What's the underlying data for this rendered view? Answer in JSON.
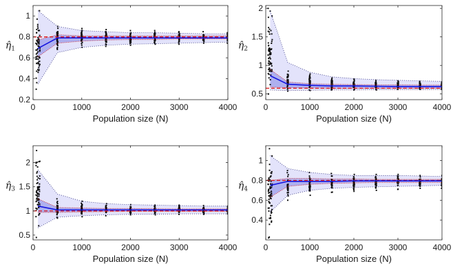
{
  "chart_data": [
    {
      "type": "line",
      "ylabel": "η̂1",
      "xlabel": "Population size (N)",
      "xlim": [
        0,
        4000
      ],
      "ylim": [
        0.2,
        1.1
      ],
      "xticks": [
        0,
        1000,
        2000,
        3000,
        4000
      ],
      "yticks": [
        0.2,
        0.4,
        0.6,
        0.8,
        1
      ],
      "ytick_labels": [
        "0.2",
        "0.4",
        "0.6",
        "0.8",
        "1"
      ],
      "x": [
        100,
        500,
        1000,
        1500,
        2000,
        2500,
        3000,
        3500,
        4000
      ],
      "true_value": 0.8,
      "series": [
        {
          "values": [
            0.69,
            0.79,
            0.79,
            0.79,
            0.79,
            0.79,
            0.79,
            0.79,
            0.79
          ]
        },
        {
          "values": [
            0.61,
            0.74,
            0.76,
            0.77,
            0.775,
            0.775,
            0.78,
            0.78,
            0.78
          ]
        },
        {
          "values": [
            0.77,
            0.82,
            0.81,
            0.81,
            0.81,
            0.81,
            0.81,
            0.81,
            0.81
          ]
        },
        {
          "values": [
            0.35,
            0.65,
            0.7,
            0.72,
            0.73,
            0.735,
            0.74,
            0.745,
            0.75
          ]
        },
        {
          "values": [
            1.05,
            0.9,
            0.86,
            0.85,
            0.84,
            0.84,
            0.835,
            0.83,
            0.83
          ]
        }
      ],
      "scatter_spread": [
        [
          0.3,
          1.05
        ],
        [
          0.68,
          0.9
        ],
        [
          0.7,
          0.88
        ],
        [
          0.71,
          0.87
        ],
        [
          0.72,
          0.86
        ],
        [
          0.73,
          0.86
        ],
        [
          0.73,
          0.85
        ],
        [
          0.74,
          0.85
        ],
        [
          0.74,
          0.84
        ]
      ]
    },
    {
      "type": "line",
      "ylabel": "η̂2",
      "xlabel": "Population size (N)",
      "xlim": [
        0,
        4000
      ],
      "ylim": [
        0.4,
        2.05
      ],
      "xticks": [
        0,
        1000,
        2000,
        3000,
        4000
      ],
      "yticks": [
        0.5,
        1,
        1.5,
        2
      ],
      "ytick_labels": [
        "0.5",
        "1",
        "1.5",
        "2"
      ],
      "x": [
        100,
        500,
        1000,
        1500,
        2000,
        2500,
        3000,
        3500,
        4000
      ],
      "true_value": 0.6,
      "series": [
        {
          "values": [
            0.82,
            0.67,
            0.65,
            0.64,
            0.64,
            0.635,
            0.63,
            0.63,
            0.63
          ]
        },
        {
          "values": [
            0.62,
            0.61,
            0.605,
            0.6,
            0.6,
            0.6,
            0.6,
            0.6,
            0.6
          ]
        },
        {
          "values": [
            0.93,
            0.71,
            0.68,
            0.67,
            0.665,
            0.66,
            0.66,
            0.655,
            0.655
          ]
        },
        {
          "values": [
            0.57,
            0.56,
            0.565,
            0.57,
            0.57,
            0.575,
            0.575,
            0.575,
            0.58
          ]
        },
        {
          "values": [
            1.95,
            1.05,
            0.88,
            0.8,
            0.77,
            0.75,
            0.74,
            0.73,
            0.72
          ]
        }
      ],
      "scatter_spread": [
        [
          0.5,
          2.0
        ],
        [
          0.55,
          0.9
        ],
        [
          0.56,
          0.85
        ],
        [
          0.57,
          0.78
        ],
        [
          0.57,
          0.76
        ],
        [
          0.57,
          0.74
        ],
        [
          0.58,
          0.73
        ],
        [
          0.58,
          0.72
        ],
        [
          0.58,
          0.71
        ]
      ]
    },
    {
      "type": "line",
      "ylabel": "η̂3",
      "xlabel": "Population size (N)",
      "xlim": [
        0,
        4000
      ],
      "ylim": [
        0.4,
        2.35
      ],
      "xticks": [
        0,
        1000,
        2000,
        3000,
        4000
      ],
      "yticks": [
        0.5,
        1,
        1.5,
        2
      ],
      "ytick_labels": [
        "0.5",
        "1",
        "1.5",
        "2"
      ],
      "x": [
        100,
        500,
        1000,
        1500,
        2000,
        2500,
        3000,
        3500,
        4000
      ],
      "true_value": 1.0,
      "series": [
        {
          "values": [
            1.1,
            1.02,
            1.02,
            1.02,
            1.02,
            1.02,
            1.02,
            1.02,
            1.02
          ]
        },
        {
          "values": [
            0.97,
            0.97,
            0.98,
            0.985,
            0.99,
            0.99,
            0.99,
            0.99,
            0.99
          ]
        },
        {
          "values": [
            1.25,
            1.07,
            1.06,
            1.05,
            1.05,
            1.045,
            1.04,
            1.04,
            1.04
          ]
        },
        {
          "values": [
            0.65,
            0.87,
            0.9,
            0.92,
            0.93,
            0.93,
            0.94,
            0.94,
            0.94
          ]
        },
        {
          "values": [
            1.85,
            1.35,
            1.2,
            1.15,
            1.13,
            1.12,
            1.11,
            1.1,
            1.1
          ]
        }
      ],
      "scatter_spread": [
        [
          0.45,
          2.25
        ],
        [
          0.85,
          1.25
        ],
        [
          0.88,
          1.2
        ],
        [
          0.9,
          1.15
        ],
        [
          0.92,
          1.13
        ],
        [
          0.92,
          1.12
        ],
        [
          0.93,
          1.12
        ],
        [
          0.93,
          1.11
        ],
        [
          0.94,
          1.1
        ]
      ]
    },
    {
      "type": "line",
      "ylabel": "η̂4",
      "xlabel": "Population size (N)",
      "xlim": [
        0,
        4000
      ],
      "ylim": [
        0.2,
        1.15
      ],
      "xticks": [
        0,
        1000,
        2000,
        3000,
        4000
      ],
      "yticks": [
        0.4,
        0.6,
        0.8,
        1
      ],
      "ytick_labels": [
        "0.4",
        "0.6",
        "0.8",
        "1"
      ],
      "x": [
        100,
        500,
        1000,
        1500,
        2000,
        2500,
        3000,
        3500,
        4000
      ],
      "true_value": 0.8,
      "series": [
        {
          "values": [
            0.75,
            0.79,
            0.79,
            0.79,
            0.795,
            0.795,
            0.795,
            0.795,
            0.795
          ]
        },
        {
          "values": [
            0.63,
            0.74,
            0.76,
            0.77,
            0.775,
            0.78,
            0.78,
            0.78,
            0.78
          ]
        },
        {
          "values": [
            0.8,
            0.82,
            0.82,
            0.815,
            0.815,
            0.81,
            0.81,
            0.81,
            0.81
          ]
        },
        {
          "values": [
            0.48,
            0.65,
            0.7,
            0.72,
            0.73,
            0.735,
            0.74,
            0.745,
            0.75
          ]
        },
        {
          "values": [
            1.05,
            0.92,
            0.88,
            0.86,
            0.85,
            0.85,
            0.85,
            0.845,
            0.84
          ]
        }
      ],
      "scatter_spread": [
        [
          0.22,
          1.12
        ],
        [
          0.6,
          0.9
        ],
        [
          0.65,
          0.88
        ],
        [
          0.68,
          0.87
        ],
        [
          0.69,
          0.86
        ],
        [
          0.7,
          0.86
        ],
        [
          0.71,
          0.86
        ],
        [
          0.72,
          0.85
        ],
        [
          0.72,
          0.85
        ]
      ]
    }
  ]
}
